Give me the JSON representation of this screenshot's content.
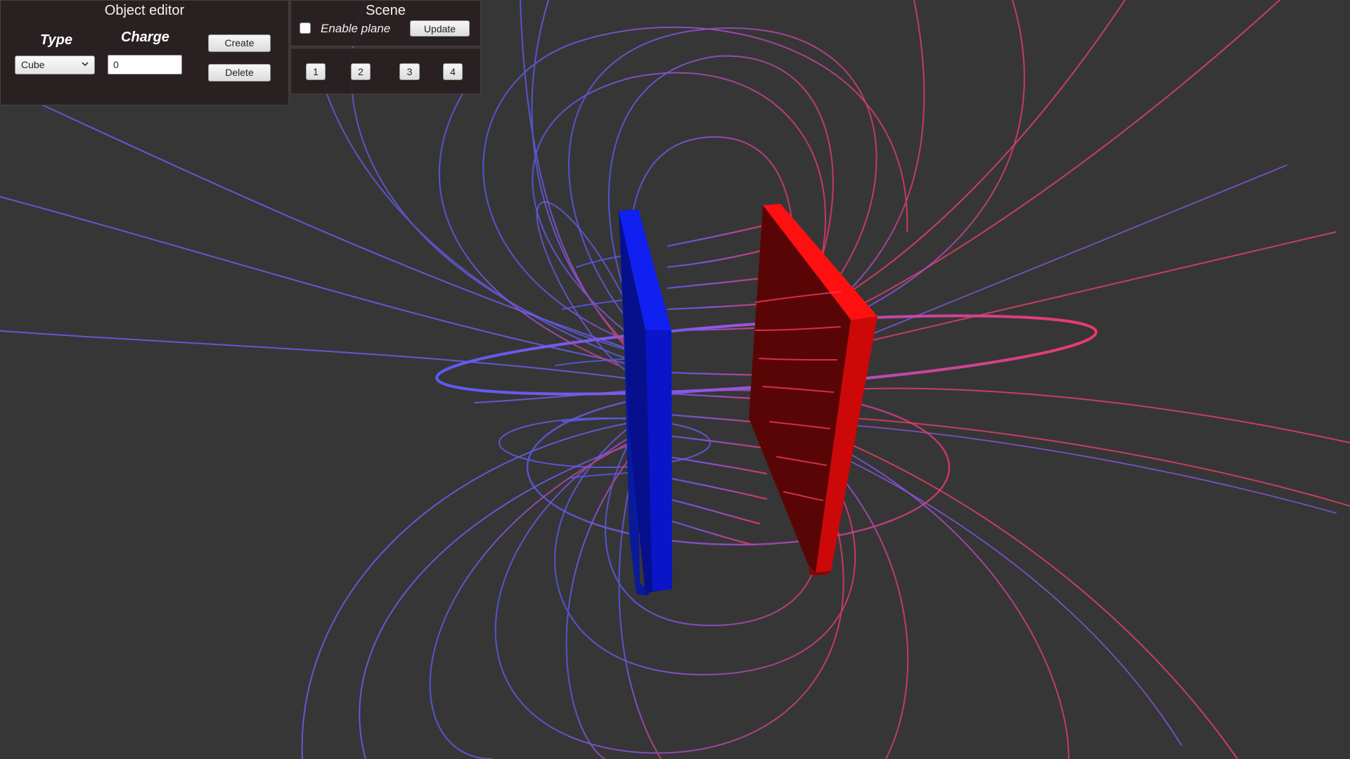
{
  "object_editor": {
    "title": "Object editor",
    "type_label": "Type",
    "charge_label": "Charge",
    "type_selected": "Cube",
    "charge_value": "0",
    "create_label": "Create",
    "delete_label": "Delete"
  },
  "scene": {
    "title": "Scene",
    "enable_plane_label": "Enable plane",
    "enable_plane_checked": false,
    "update_label": "Update",
    "scene_buttons": [
      "1",
      "2",
      "3",
      "4"
    ]
  },
  "viewport": {
    "objects": [
      {
        "name": "negative-plate",
        "shape": "cube",
        "color": "#0a14e6"
      },
      {
        "name": "positive-plate",
        "shape": "cube",
        "color": "#ee0b0b"
      }
    ],
    "field_line_colors": {
      "negative": "#5a5cf5",
      "positive": "#ee3868"
    }
  }
}
